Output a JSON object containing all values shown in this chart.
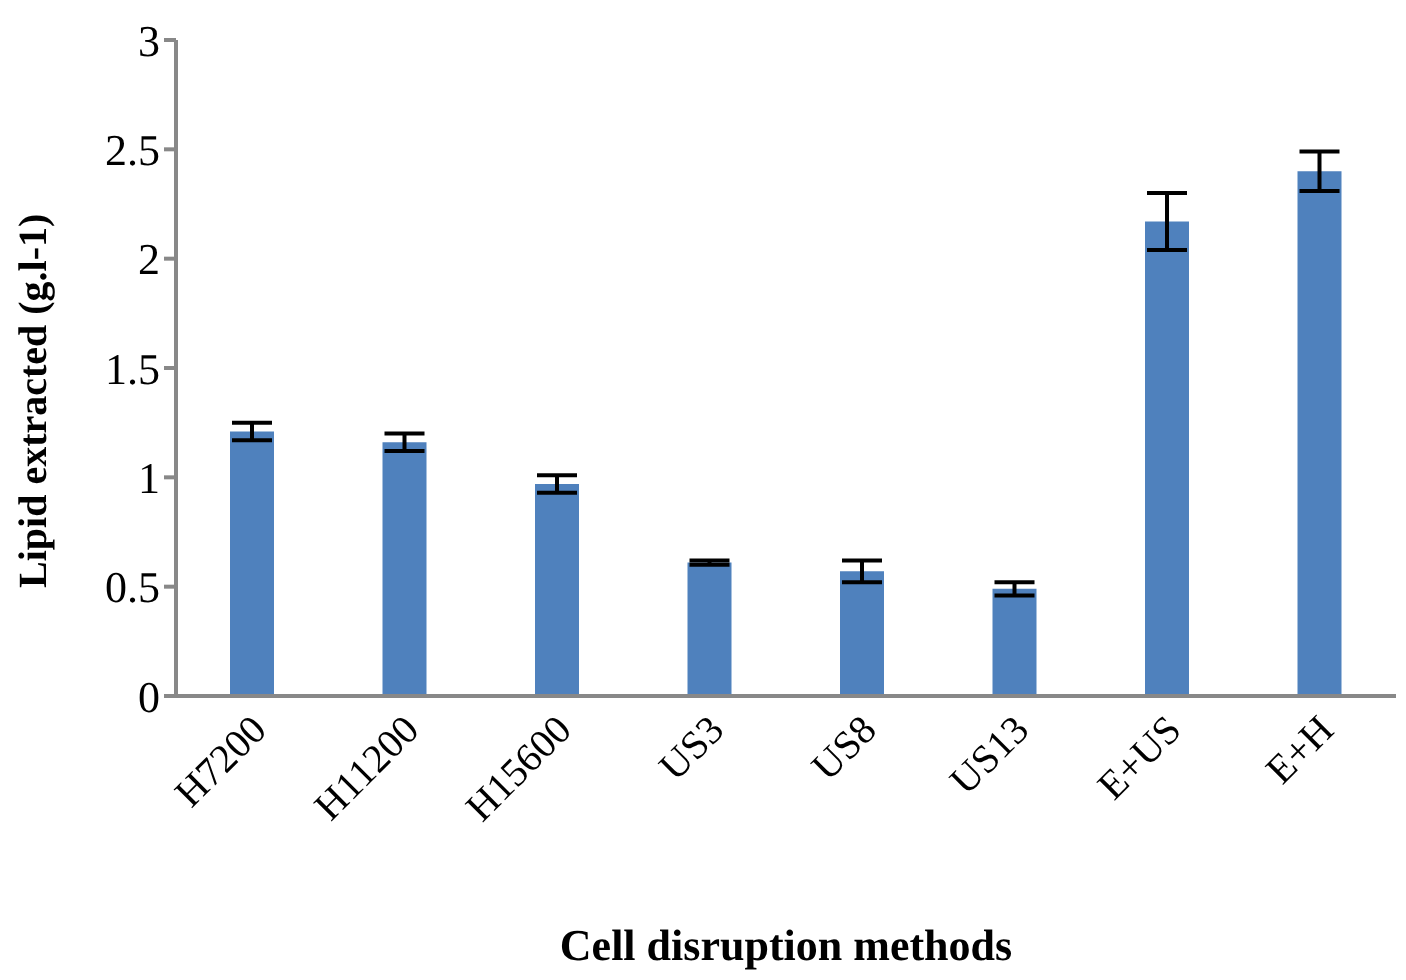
{
  "chart_data": {
    "type": "bar",
    "xlabel": "Cell disruption methods",
    "ylabel": "Lipid extracted (g.l-1)",
    "categories": [
      "H7200",
      "H11200",
      "H15600",
      "US3",
      "US8",
      "US13",
      "E+US",
      "E+H"
    ],
    "values": [
      1.21,
      1.16,
      0.97,
      0.61,
      0.57,
      0.49,
      2.17,
      2.4
    ],
    "errors": [
      0.04,
      0.04,
      0.04,
      0.01,
      0.05,
      0.03,
      0.13,
      0.09
    ],
    "color": "#4f81bd",
    "ylim": [
      0,
      3
    ],
    "yticks": [
      0,
      0.5,
      1,
      1.5,
      2,
      2.5,
      3
    ],
    "grid": false,
    "legend": false
  }
}
